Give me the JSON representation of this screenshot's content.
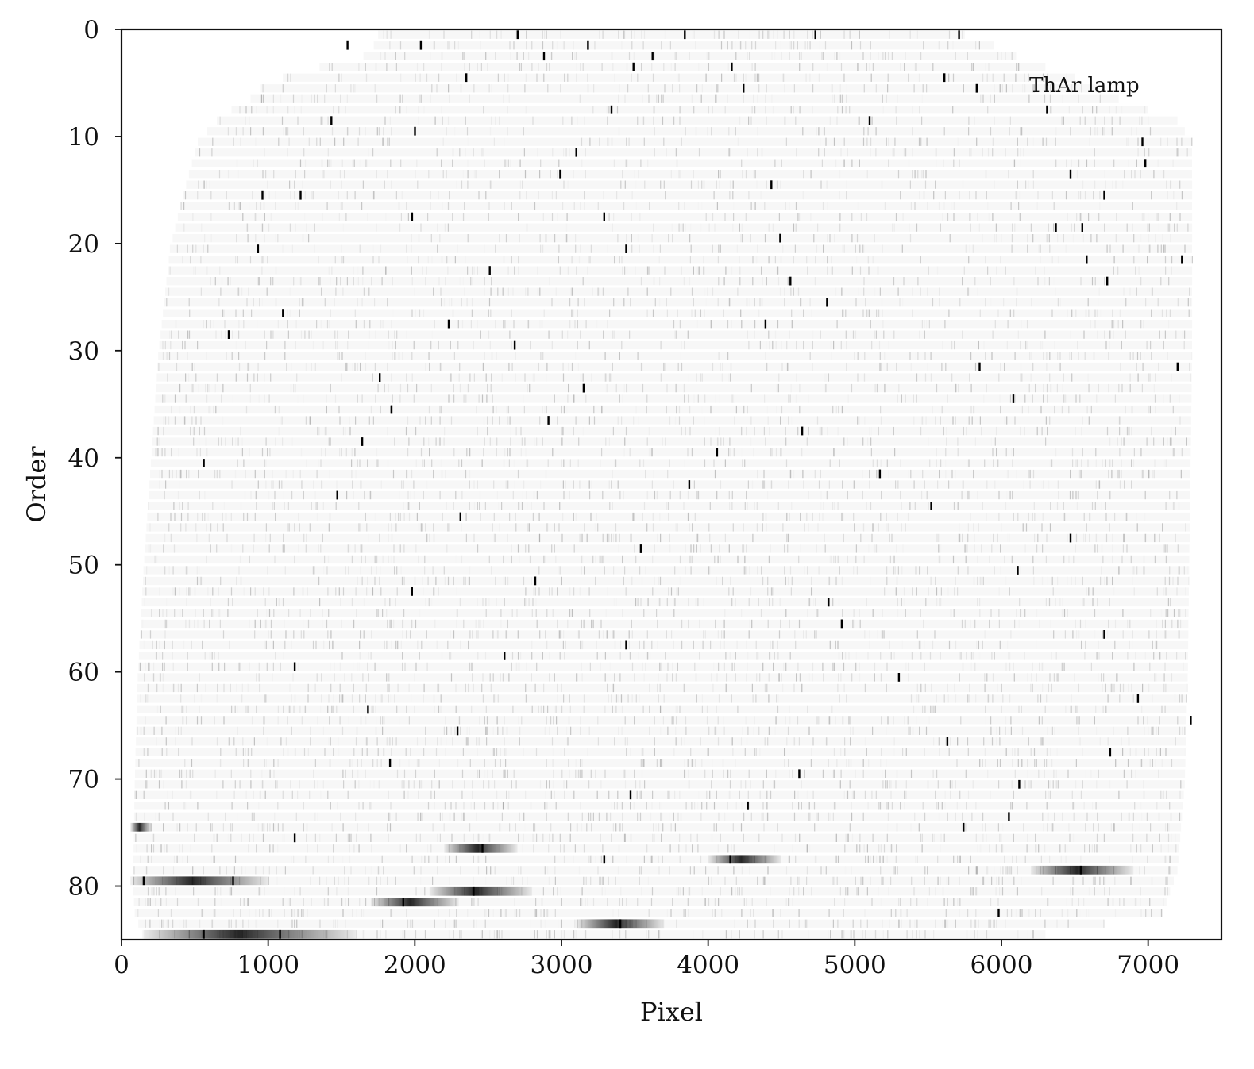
{
  "chart_data": {
    "type": "heatmap",
    "title": "",
    "annotation": "ThAr lamp",
    "xlabel": "Pixel",
    "ylabel": "Order",
    "xlim": [
      0,
      7500
    ],
    "ylim": [
      85,
      0
    ],
    "y_inverted": true,
    "xticks": [
      0,
      1000,
      2000,
      3000,
      4000,
      5000,
      6000,
      7000
    ],
    "yticks": [
      0,
      10,
      20,
      30,
      40,
      50,
      60,
      70,
      80
    ],
    "n_orders": 85,
    "colormap": "gray_r",
    "grid": false,
    "colors": {
      "background": "#ffffff",
      "line": "#000000",
      "axis": "#111111"
    },
    "order_coverage": [
      {
        "order": 0,
        "xmin": 1750,
        "xmax": 5750
      },
      {
        "order": 1,
        "xmin": 1720,
        "xmax": 5950
      },
      {
        "order": 2,
        "xmin": 1650,
        "xmax": 6100
      },
      {
        "order": 3,
        "xmin": 1350,
        "xmax": 6300
      },
      {
        "order": 4,
        "xmin": 1100,
        "xmax": 6500
      },
      {
        "order": 5,
        "xmin": 950,
        "xmax": 6650
      },
      {
        "order": 6,
        "xmin": 880,
        "xmax": 6800
      },
      {
        "order": 7,
        "xmin": 750,
        "xmax": 7000
      },
      {
        "order": 8,
        "xmin": 650,
        "xmax": 7200
      },
      {
        "order": 10,
        "xmin": 520,
        "xmax": 7300
      },
      {
        "order": 15,
        "xmin": 420,
        "xmax": 7300
      },
      {
        "order": 20,
        "xmin": 330,
        "xmax": 7300
      },
      {
        "order": 30,
        "xmin": 250,
        "xmax": 7300
      },
      {
        "order": 40,
        "xmin": 200,
        "xmax": 7290
      },
      {
        "order": 50,
        "xmin": 150,
        "xmax": 7280
      },
      {
        "order": 60,
        "xmin": 110,
        "xmax": 7270
      },
      {
        "order": 70,
        "xmin": 90,
        "xmax": 7250
      },
      {
        "order": 78,
        "xmin": 80,
        "xmax": 7200
      },
      {
        "order": 80,
        "xmin": 80,
        "xmax": 7150
      },
      {
        "order": 82,
        "xmin": 90,
        "xmax": 7100
      },
      {
        "order": 84,
        "xmin": 140,
        "xmax": 6300
      }
    ],
    "bright_lines": [
      {
        "order": 0,
        "x": 2700
      },
      {
        "order": 0,
        "x": 3840
      },
      {
        "order": 0,
        "x": 4730
      },
      {
        "order": 0,
        "x": 5710
      },
      {
        "order": 1,
        "x": 1540
      },
      {
        "order": 1,
        "x": 2040
      },
      {
        "order": 1,
        "x": 3180
      },
      {
        "order": 2,
        "x": 2880
      },
      {
        "order": 2,
        "x": 3620
      },
      {
        "order": 3,
        "x": 3490
      },
      {
        "order": 3,
        "x": 4160
      },
      {
        "order": 4,
        "x": 2350
      },
      {
        "order": 4,
        "x": 5610
      },
      {
        "order": 5,
        "x": 4240
      },
      {
        "order": 5,
        "x": 5830
      },
      {
        "order": 7,
        "x": 3340
      },
      {
        "order": 7,
        "x": 6310
      },
      {
        "order": 8,
        "x": 1430
      },
      {
        "order": 8,
        "x": 5100
      },
      {
        "order": 9,
        "x": 2000
      },
      {
        "order": 10,
        "x": 6960
      },
      {
        "order": 11,
        "x": 3100
      },
      {
        "order": 12,
        "x": 6980
      },
      {
        "order": 13,
        "x": 2990
      },
      {
        "order": 13,
        "x": 6470
      },
      {
        "order": 14,
        "x": 4430
      },
      {
        "order": 15,
        "x": 960
      },
      {
        "order": 15,
        "x": 1220
      },
      {
        "order": 15,
        "x": 6700
      },
      {
        "order": 17,
        "x": 1980
      },
      {
        "order": 17,
        "x": 3290
      },
      {
        "order": 18,
        "x": 6370
      },
      {
        "order": 18,
        "x": 6550
      },
      {
        "order": 19,
        "x": 4490
      },
      {
        "order": 20,
        "x": 930
      },
      {
        "order": 20,
        "x": 3440
      },
      {
        "order": 21,
        "x": 6580
      },
      {
        "order": 21,
        "x": 7230
      },
      {
        "order": 22,
        "x": 2510
      },
      {
        "order": 23,
        "x": 4560
      },
      {
        "order": 23,
        "x": 6720
      },
      {
        "order": 25,
        "x": 4810
      },
      {
        "order": 26,
        "x": 1100
      },
      {
        "order": 27,
        "x": 2230
      },
      {
        "order": 27,
        "x": 4390
      },
      {
        "order": 28,
        "x": 730
      },
      {
        "order": 29,
        "x": 2680
      },
      {
        "order": 31,
        "x": 5850
      },
      {
        "order": 31,
        "x": 7200
      },
      {
        "order": 32,
        "x": 1760
      },
      {
        "order": 33,
        "x": 3150
      },
      {
        "order": 34,
        "x": 6080
      },
      {
        "order": 35,
        "x": 1840
      },
      {
        "order": 36,
        "x": 2910
      },
      {
        "order": 37,
        "x": 4640
      },
      {
        "order": 38,
        "x": 1640
      },
      {
        "order": 39,
        "x": 4060
      },
      {
        "order": 40,
        "x": 560
      },
      {
        "order": 41,
        "x": 5170
      },
      {
        "order": 42,
        "x": 3870
      },
      {
        "order": 43,
        "x": 1470
      },
      {
        "order": 44,
        "x": 5520
      },
      {
        "order": 45,
        "x": 2310
      },
      {
        "order": 47,
        "x": 6470
      },
      {
        "order": 48,
        "x": 3540
      },
      {
        "order": 50,
        "x": 6110
      },
      {
        "order": 51,
        "x": 2820
      },
      {
        "order": 52,
        "x": 1980
      },
      {
        "order": 53,
        "x": 4820
      },
      {
        "order": 55,
        "x": 4910
      },
      {
        "order": 56,
        "x": 6700
      },
      {
        "order": 57,
        "x": 3440
      },
      {
        "order": 58,
        "x": 2610
      },
      {
        "order": 59,
        "x": 1180
      },
      {
        "order": 60,
        "x": 5300
      },
      {
        "order": 62,
        "x": 6930
      },
      {
        "order": 63,
        "x": 1680
      },
      {
        "order": 64,
        "x": 7290
      },
      {
        "order": 65,
        "x": 2290
      },
      {
        "order": 66,
        "x": 5630
      },
      {
        "order": 67,
        "x": 6740
      },
      {
        "order": 68,
        "x": 1830
      },
      {
        "order": 69,
        "x": 4620
      },
      {
        "order": 70,
        "x": 6120
      },
      {
        "order": 71,
        "x": 3470
      },
      {
        "order": 72,
        "x": 4270
      },
      {
        "order": 73,
        "x": 6050
      },
      {
        "order": 74,
        "x": 5740
      },
      {
        "order": 75,
        "x": 1180
      },
      {
        "order": 76,
        "x": 2460
      },
      {
        "order": 77,
        "x": 4150
      },
      {
        "order": 77,
        "x": 3290
      },
      {
        "order": 78,
        "x": 6540
      },
      {
        "order": 79,
        "x": 150
      },
      {
        "order": 79,
        "x": 760
      },
      {
        "order": 80,
        "x": 2400
      },
      {
        "order": 81,
        "x": 1920
      },
      {
        "order": 82,
        "x": 5980
      },
      {
        "order": 83,
        "x": 3400
      },
      {
        "order": 84,
        "x": 560
      },
      {
        "order": 84,
        "x": 1080
      }
    ],
    "bright_bands": [
      {
        "order": 74,
        "xmin": 60,
        "xmax": 200
      },
      {
        "order": 76,
        "xmin": 2200,
        "xmax": 2700
      },
      {
        "order": 77,
        "xmin": 4000,
        "xmax": 4500
      },
      {
        "order": 78,
        "xmin": 6200,
        "xmax": 6900
      },
      {
        "order": 79,
        "xmin": 60,
        "xmax": 1000
      },
      {
        "order": 80,
        "xmin": 2100,
        "xmax": 2800
      },
      {
        "order": 81,
        "xmin": 1700,
        "xmax": 2300
      },
      {
        "order": 83,
        "xmin": 3100,
        "xmax": 3700
      },
      {
        "order": 84,
        "xmin": 150,
        "xmax": 1600
      }
    ]
  }
}
